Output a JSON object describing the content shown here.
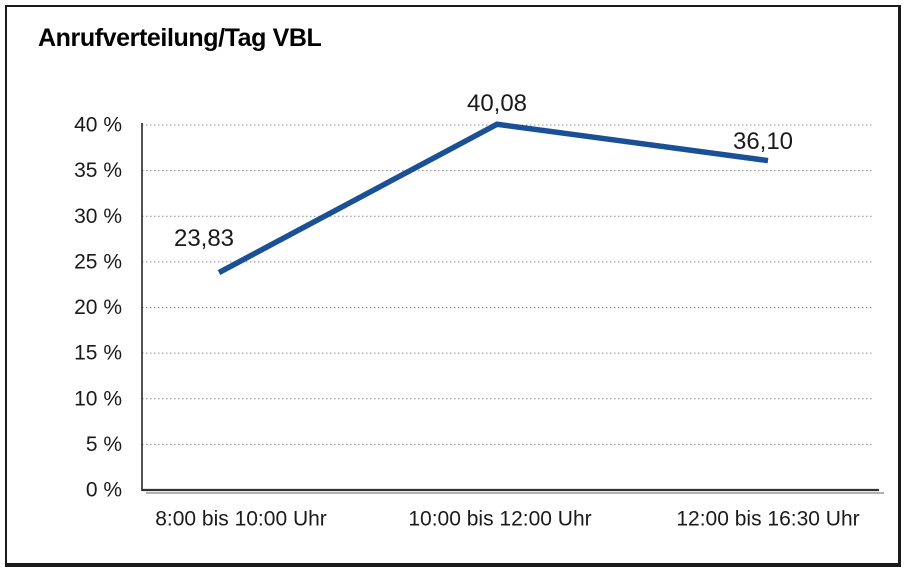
{
  "chart": {
    "title": "Anrufverteilung/Tag VBL"
  },
  "chart_data": {
    "type": "line",
    "title": "Anrufverteilung/Tag VBL",
    "categories": [
      "8:00 bis 10:00 Uhr",
      "10:00 bis 12:00 Uhr",
      "12:00 bis 16:30 Uhr"
    ],
    "values": [
      23.83,
      40.08,
      36.1
    ],
    "point_labels": [
      "23,83",
      "40,08",
      "36,10"
    ],
    "ytick_labels": [
      "0 %",
      "5 %",
      "10 %",
      "15 %",
      "20 %",
      "25 %",
      "30 %",
      "35 %",
      "40 %"
    ],
    "ytick_values": [
      0,
      5,
      10,
      15,
      20,
      25,
      30,
      35,
      40
    ],
    "ylim": [
      0,
      40
    ],
    "xlabel": "",
    "ylabel": "",
    "grid": "horizontal-dotted",
    "legend_position": "none",
    "colors": {
      "line": "#1a5096",
      "grid": "#8c8c8c",
      "axis": "#262626",
      "text": "#1a1a1a",
      "frame_border": "#1a1a1a"
    }
  }
}
